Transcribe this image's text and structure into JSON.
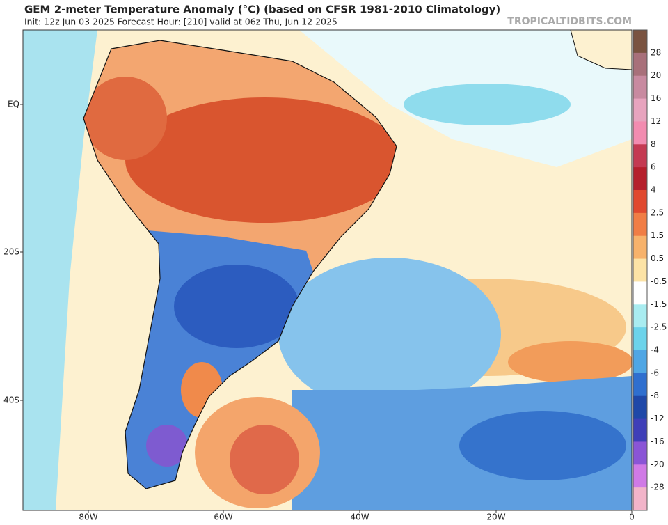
{
  "header": {
    "title": "GEM 2-meter Temperature Anomaly (°C) (based on CFSR 1981-2010 Climatology)",
    "subtitle": "Init: 12z Jun 03 2025   Forecast Hour: [210]   valid at 06z Thu, Jun 12 2025",
    "watermark": "TROPICALTIDBITS.COM"
  },
  "map": {
    "lat_labels": [
      "EQ",
      "20S",
      "40S"
    ],
    "lon_labels": [
      "80W",
      "60W",
      "40W",
      "20W",
      "0"
    ]
  },
  "colorbar": {
    "labels": [
      28,
      20,
      16,
      12,
      8,
      6,
      4,
      2.5,
      1.5,
      0.5,
      -0.5,
      -1.5,
      -2.5,
      -4,
      -6,
      -8,
      -12,
      -16,
      -20,
      -28
    ],
    "colors": [
      "#7a5340",
      "#a8707a",
      "#c88aa0",
      "#e7a4be",
      "#f28cb0",
      "#c43a52",
      "#b51f2c",
      "#e0492f",
      "#f07d45",
      "#f7b26b",
      "#fce3a6",
      "#ffffff",
      "#a9ecf0",
      "#6cd3ea",
      "#4fa6e4",
      "#2f6fcf",
      "#1f48a8",
      "#3f3fb8",
      "#8a55d6",
      "#d07ae6",
      "#f2b4c9"
    ]
  }
}
